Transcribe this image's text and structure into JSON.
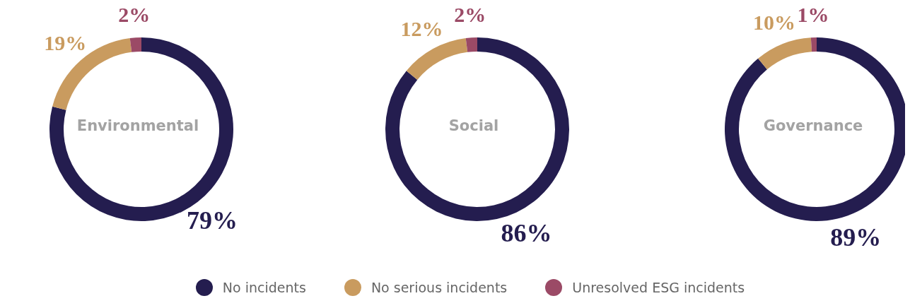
{
  "chart_data": [
    {
      "type": "donut",
      "title": "Environmental",
      "categories": [
        null,
        null,
        null
      ],
      "values": [
        79,
        19,
        2
      ],
      "colors": [
        "#241d4f",
        "#c99b5f",
        "#9b4a66"
      ],
      "value_labels": [
        "79%",
        "19%",
        "2%"
      ]
    },
    {
      "type": "donut",
      "title": "Social",
      "categories": [
        "No incidents",
        "No serious incidents",
        "Unresolved ESG incidents"
      ],
      "values": [
        86,
        12,
        2
      ],
      "colors": [
        "#241d4f",
        "#c99b5f",
        "#9b4a66"
      ],
      "value_labels": [
        "86%",
        "12%",
        "2%"
      ],
      "legend": "bottom"
    },
    {
      "type": "donut",
      "title": "Governance",
      "categories": [
        null,
        null,
        null
      ],
      "values": [
        89,
        10,
        1
      ],
      "colors": [
        "#241d4f",
        "#c99b5f",
        "#9b4a66"
      ],
      "value_labels": [
        "89%",
        "10%",
        "1%"
      ]
    }
  ]
}
